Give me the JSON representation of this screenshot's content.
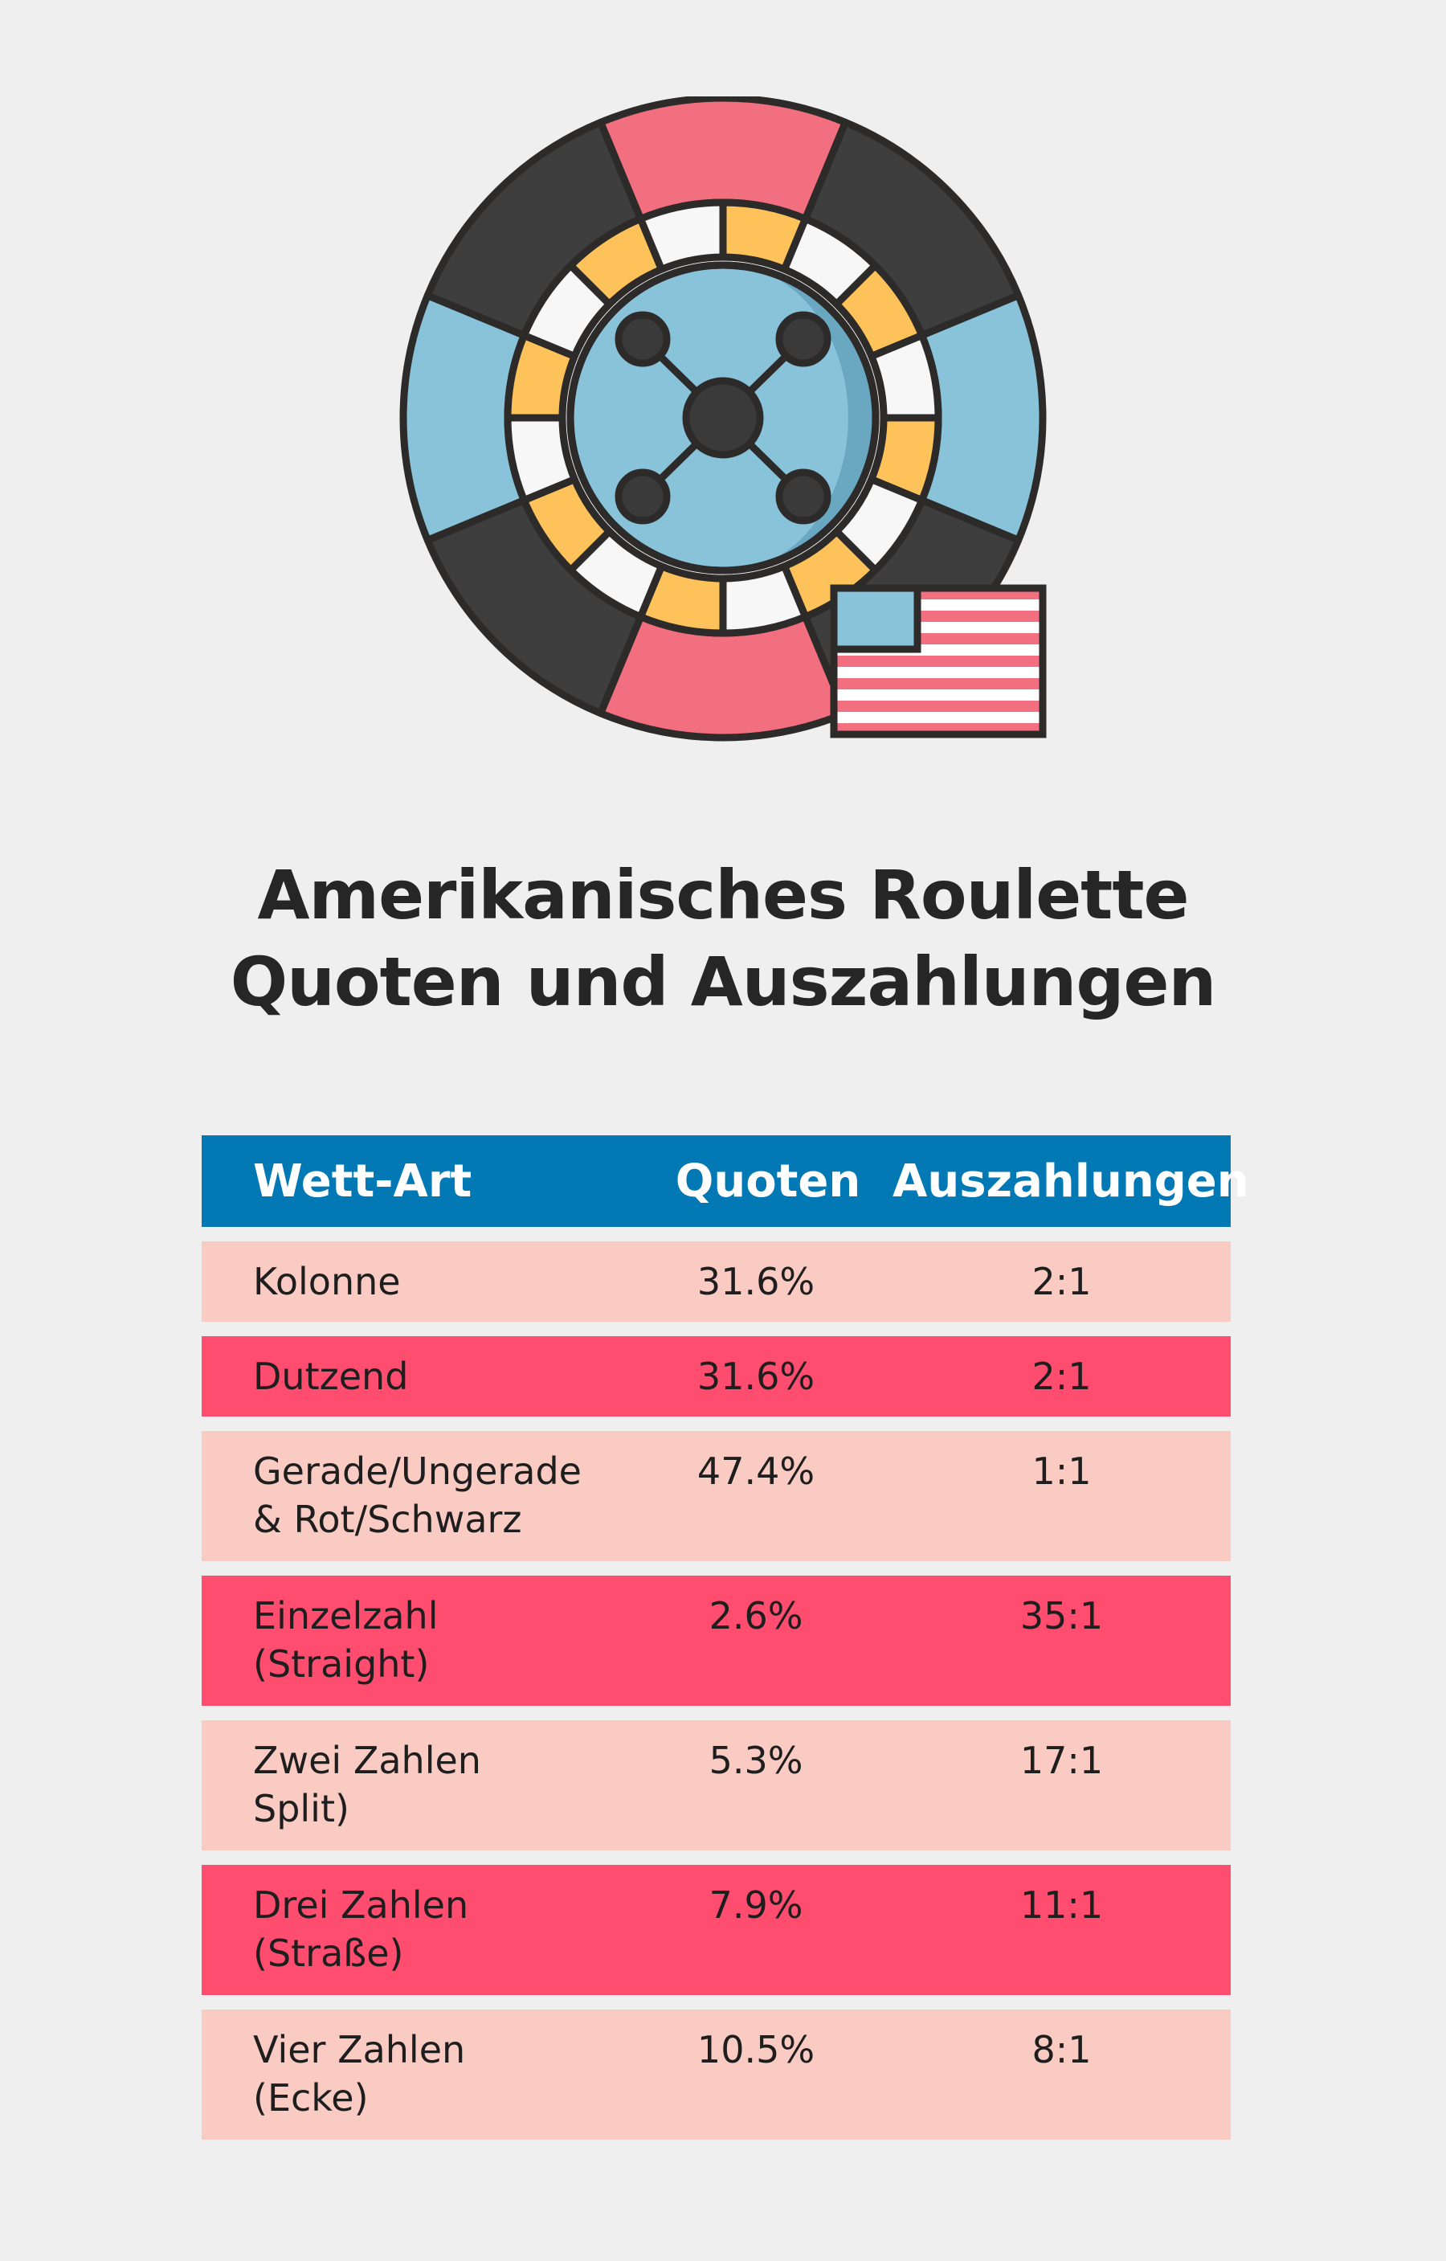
{
  "colors": {
    "background": "#efefef",
    "header": "#0279b5",
    "row_light": "#facbc3",
    "row_dark": "#fe4d6f",
    "wheel_pink": "#f16f7e",
    "wheel_dark": "#3e3e3e",
    "wheel_blue": "#88c3da",
    "wheel_yellow": "#fdc25a",
    "outline": "#2d2a2a"
  },
  "graphic": {
    "icon": "roulette-wheel-icon",
    "flag_icon": "us-flag-icon"
  },
  "title": {
    "line1": "Amerikanisches Roulette",
    "line2": "Quoten und Auszahlungen"
  },
  "table": {
    "headers": {
      "bet_type": "Wett-Art",
      "odds": "Quoten",
      "payout": "Auszahlungen"
    },
    "rows": [
      {
        "bet_line1": "Kolonne",
        "bet_line2": "",
        "odds": "31.6%",
        "payout": "2:1"
      },
      {
        "bet_line1": "Dutzend",
        "bet_line2": "",
        "odds": "31.6%",
        "payout": "2:1"
      },
      {
        "bet_line1": "Gerade/Ungerade",
        "bet_line2": "& Rot/Schwarz",
        "odds": "47.4%",
        "payout": "1:1"
      },
      {
        "bet_line1": "Einzelzahl",
        "bet_line2": "(Straight)",
        "odds": "2.6%",
        "payout": "35:1"
      },
      {
        "bet_line1": "Zwei Zahlen",
        "bet_line2": "Split)",
        "odds": "5.3%",
        "payout": "17:1"
      },
      {
        "bet_line1": "Drei Zahlen",
        "bet_line2": "(Straße)",
        "odds": "7.9%",
        "payout": "11:1"
      },
      {
        "bet_line1": "Vier Zahlen",
        "bet_line2": "(Ecke)",
        "odds": "10.5%",
        "payout": "8:1"
      }
    ]
  }
}
